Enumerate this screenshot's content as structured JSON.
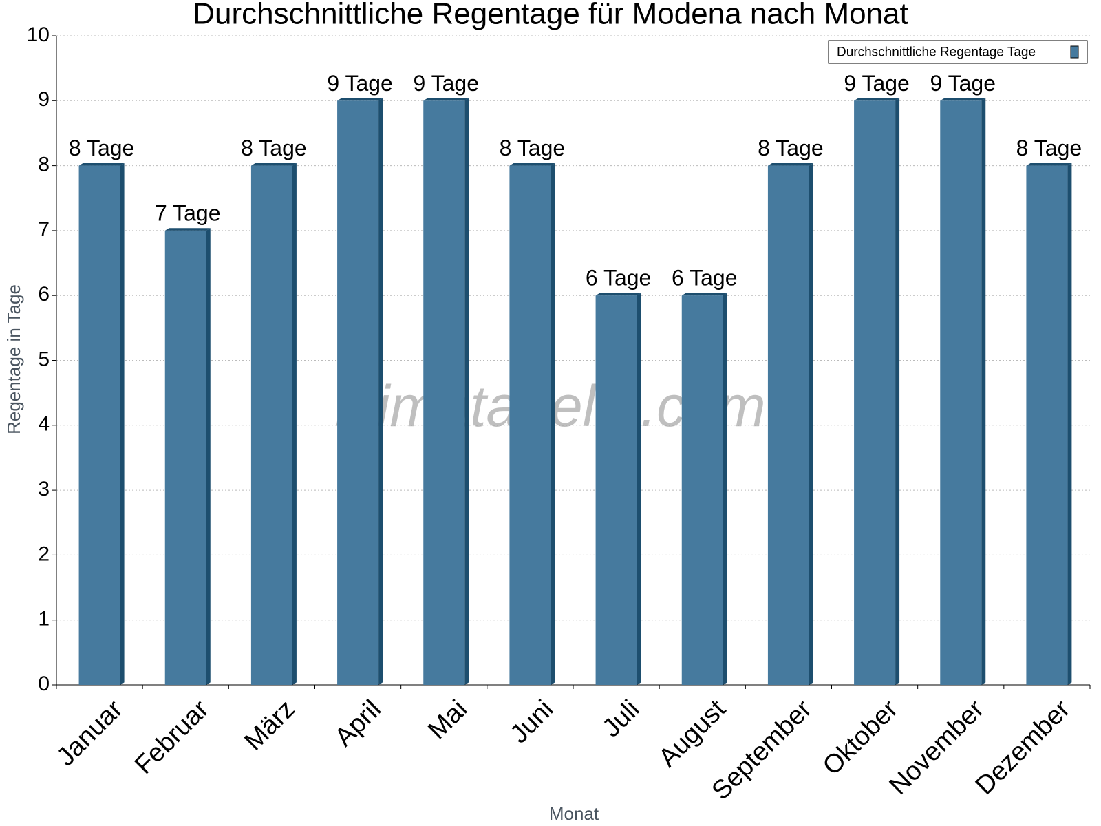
{
  "chart_data": {
    "type": "bar",
    "title": "Durchschnittliche Regentage für Modena nach Monat",
    "x_label": "Monat",
    "y_label": "Regentage in Tage",
    "watermark": "klimatabelle.com",
    "categories": [
      "Januar",
      "Februar",
      "März",
      "April",
      "Mai",
      "Juni",
      "Juli",
      "August",
      "September",
      "Oktober",
      "November",
      "Dezember"
    ],
    "series": [
      {
        "name": "Durchschnittliche Regentage Tage",
        "color": "#467a9e",
        "values": [
          8,
          7,
          8,
          9,
          9,
          8,
          6,
          6,
          8,
          9,
          9,
          8
        ],
        "value_labels": [
          "8 Tage",
          "7 Tage",
          "8 Tage",
          "9 Tage",
          "9 Tage",
          "8 Tage",
          "6 Tage",
          "6 Tage",
          "8 Tage",
          "9 Tage",
          "9 Tage",
          "8 Tage"
        ]
      }
    ],
    "ylim": [
      0,
      10
    ],
    "yticks": [
      0,
      1,
      2,
      3,
      4,
      5,
      6,
      7,
      8,
      9,
      10
    ],
    "grid": true,
    "legend": "upper right"
  }
}
